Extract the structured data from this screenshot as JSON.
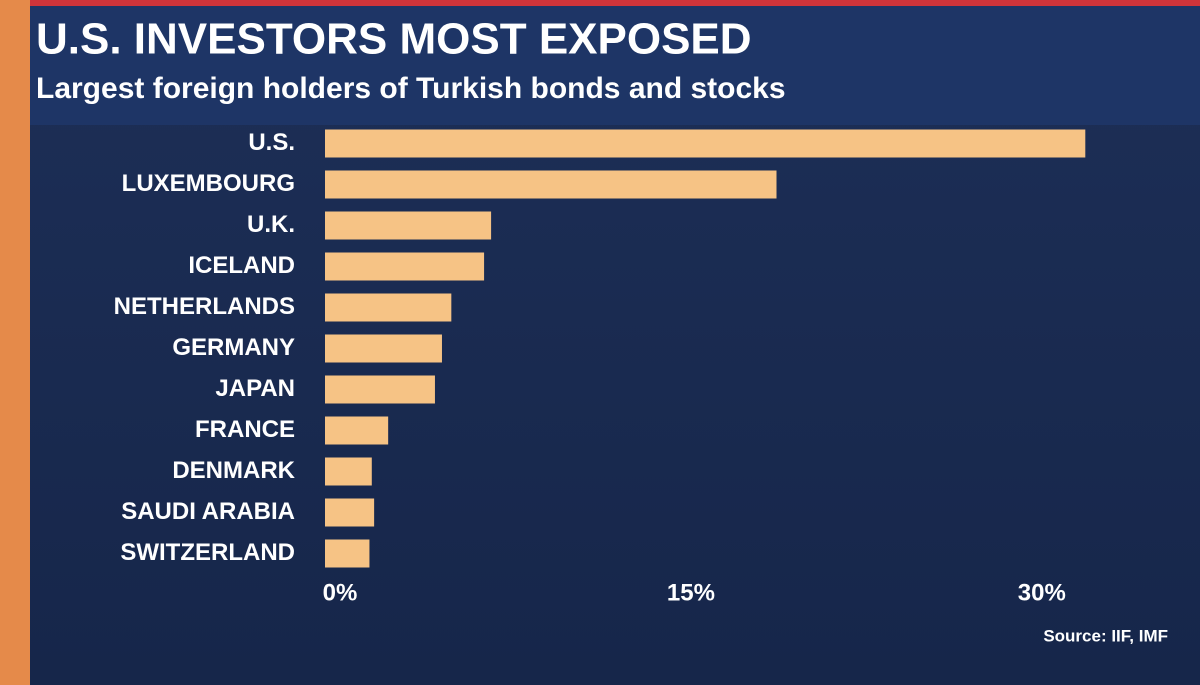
{
  "chart_data": {
    "type": "bar",
    "title": "U.S. INVESTORS MOST EXPOSED",
    "subtitle": "Largest foreign holders of Turkish bonds and stocks",
    "categories": [
      "U.S.",
      "LUXEMBOURG",
      "U.K.",
      "ICELAND",
      "NETHERLANDS",
      "GERMANY",
      "JAPAN",
      "FRANCE",
      "DENMARK",
      "SAUDI ARABIA",
      "SWITZERLAND"
    ],
    "values": [
      32.5,
      19.3,
      7.1,
      6.8,
      5.4,
      5.0,
      4.7,
      2.7,
      2.0,
      2.1,
      1.9
    ],
    "color": "#f6c385",
    "xlim": [
      0,
      33
    ],
    "xticks": [
      {
        "value": 0,
        "label": "0%"
      },
      {
        "value": 15,
        "label": "15%"
      },
      {
        "value": 30,
        "label": "30%"
      }
    ],
    "source": "Source: IIF, IMF"
  }
}
